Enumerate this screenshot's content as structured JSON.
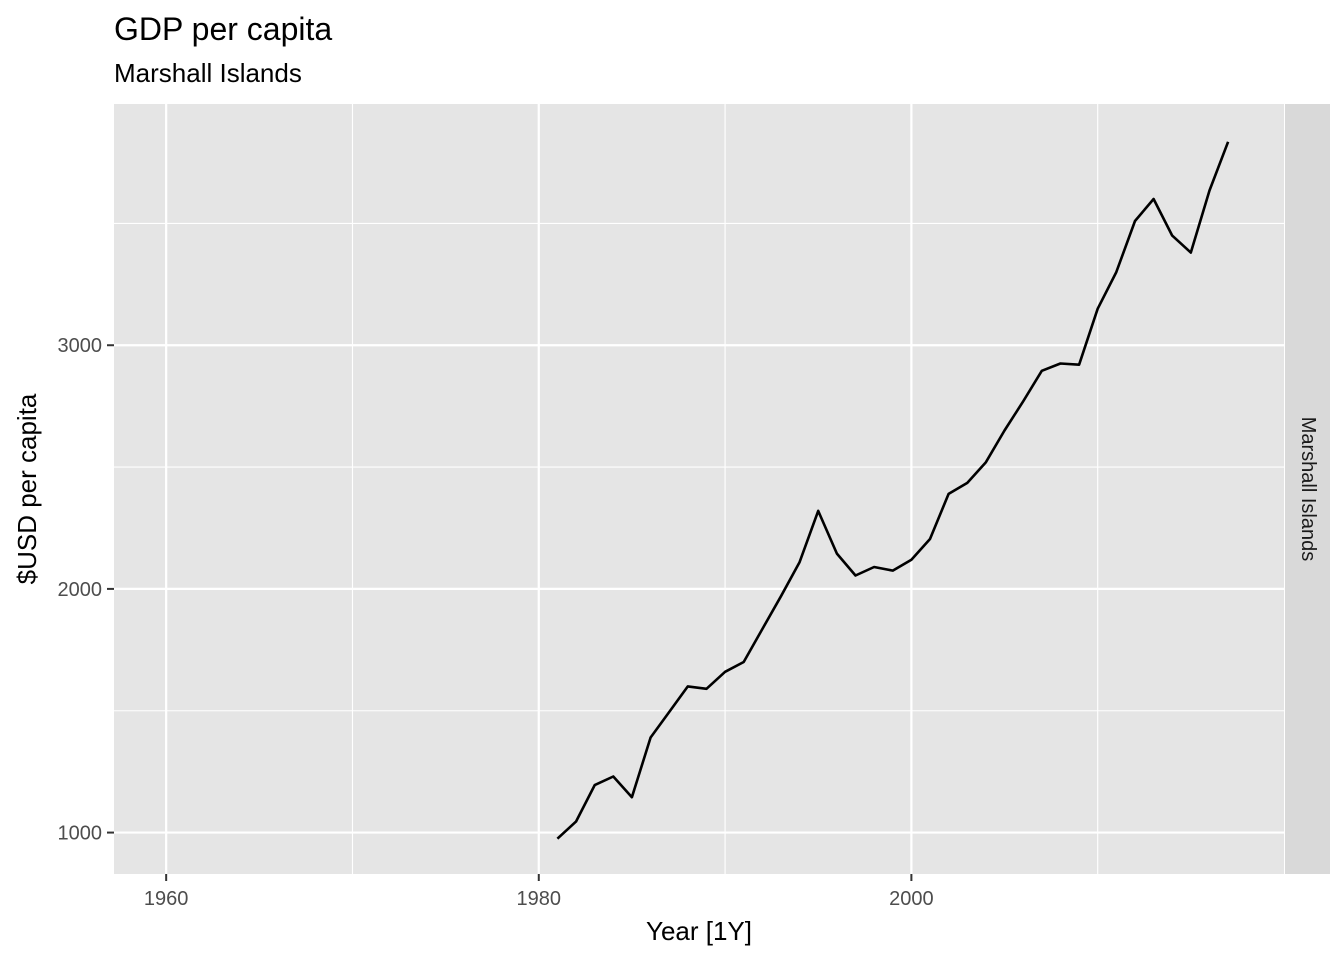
{
  "chart_data": {
    "type": "line",
    "title": "GDP per capita",
    "subtitle": "Marshall Islands",
    "xlabel": "Year [1Y]",
    "ylabel": "$USD per capita",
    "facet_label": "Marshall Islands",
    "xlim": [
      1957.2,
      2020.0
    ],
    "ylim": [
      830,
      3990
    ],
    "x_ticks": [
      1960,
      1980,
      2000
    ],
    "x_tick_labels": [
      "1960",
      "1980",
      "2000"
    ],
    "x_minor_ticks": [
      1970,
      1990,
      2010
    ],
    "y_ticks": [
      1000,
      2000,
      3000
    ],
    "y_tick_labels": [
      "1000",
      "2000",
      "3000"
    ],
    "y_minor_ticks": [
      1500,
      2500,
      3500
    ],
    "grid": true,
    "colors": {
      "panel": "#e5e5e5",
      "grid": "#ffffff",
      "line": "#000000",
      "strip": "#d9d9d9"
    },
    "series": [
      {
        "x": [
          1981,
          1982,
          1983,
          1984,
          1985,
          1986,
          1987,
          1988,
          1989,
          1990,
          1991,
          1992,
          1993,
          1994,
          1995,
          1996,
          1997,
          1998,
          1999,
          2000,
          2001,
          2002,
          2003,
          2004,
          2005,
          2006,
          2007,
          2008,
          2009,
          2010,
          2011,
          2012,
          2013,
          2014,
          2015,
          2016,
          2017
        ],
        "values": [
          975,
          1045,
          1195,
          1230,
          1145,
          1390,
          1495,
          1600,
          1590,
          1660,
          1700,
          1835,
          1970,
          2110,
          2320,
          2145,
          2055,
          2090,
          2075,
          2120,
          2205,
          2390,
          2435,
          2520,
          2650,
          2770,
          2895,
          2925,
          2920,
          3150,
          3300,
          3510,
          3600,
          3450,
          3380,
          3635,
          3835
        ]
      }
    ]
  }
}
